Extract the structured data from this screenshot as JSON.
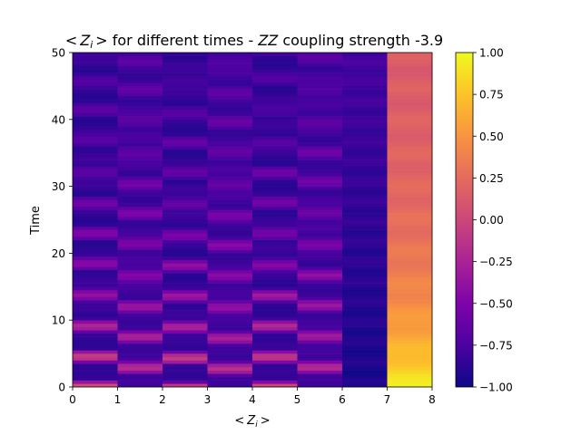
{
  "chart_data": {
    "type": "heatmap",
    "title": "< Z_i > for different times - ZZ coupling strength -3.9",
    "title_parts": {
      "lt": "<",
      "z": "Z",
      "i": "i",
      "gt": ">",
      "middle": " for different times - ",
      "zz": "ZZ",
      "rest": " coupling strength -3.9"
    },
    "xlabel": "<Z_i>",
    "xlabel_parts": {
      "lt": "<",
      "z": "Z",
      "i": "i",
      "gt": ">"
    },
    "ylabel": "Time",
    "xlim": [
      0,
      8
    ],
    "ylim": [
      0,
      50
    ],
    "xticks": [
      "0",
      "1",
      "2",
      "3",
      "4",
      "5",
      "6",
      "7",
      "8"
    ],
    "yticks": [
      "0",
      "10",
      "20",
      "30",
      "40",
      "50"
    ],
    "colormap": "plasma",
    "clim": [
      -1.0,
      1.0
    ],
    "colorbar_ticks": [
      "1.00",
      "0.75",
      "0.50",
      "0.25",
      "0.00",
      "−0.25",
      "−0.50",
      "−0.75",
      "−1.00"
    ],
    "colorbar_tick_values": [
      1.0,
      0.75,
      0.5,
      0.25,
      0.0,
      -0.25,
      -0.5,
      -0.75,
      -1.0
    ],
    "columns": [
      {
        "name": "0",
        "model": "osc",
        "base": -0.85,
        "amp": 0.95,
        "period": 4.6,
        "phase": 0.0,
        "decay": 22
      },
      {
        "name": "1",
        "model": "osc",
        "base": -0.8,
        "amp": 0.7,
        "period": 4.6,
        "phase": 2.3,
        "decay": 26
      },
      {
        "name": "2",
        "model": "osc",
        "base": -0.85,
        "amp": 0.95,
        "period": 4.6,
        "phase": 0.3,
        "decay": 22
      },
      {
        "name": "3",
        "model": "osc",
        "base": -0.8,
        "amp": 0.7,
        "period": 4.6,
        "phase": 2.5,
        "decay": 26
      },
      {
        "name": "4",
        "model": "osc",
        "base": -0.85,
        "amp": 0.95,
        "period": 4.6,
        "phase": 0.1,
        "decay": 22
      },
      {
        "name": "5",
        "model": "osc",
        "base": -0.8,
        "amp": 0.7,
        "period": 4.6,
        "phase": 2.2,
        "decay": 26
      },
      {
        "name": "6",
        "model": "flat",
        "start": -0.95,
        "end": -0.78
      },
      {
        "name": "7",
        "model": "decay",
        "start": 0.95,
        "end": 0.12,
        "tau": 14
      }
    ]
  }
}
